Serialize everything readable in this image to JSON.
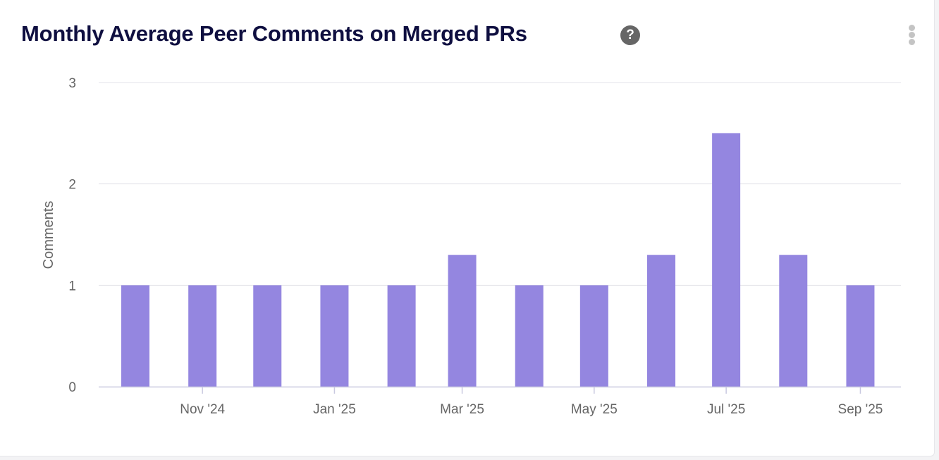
{
  "header": {
    "title": "Monthly Average Peer Comments on Merged PRs",
    "help_icon": "question-circle-icon",
    "menu_icon": "more-vertical-icon"
  },
  "chart_data": {
    "type": "bar",
    "title": "Monthly Average Peer Comments on Merged PRs",
    "xlabel": "",
    "ylabel": "Comments",
    "ylim": [
      0,
      3
    ],
    "yticks": [
      0,
      1,
      2,
      3
    ],
    "xtick_labels": [
      {
        "date": "2024-11-01",
        "label": "Nov '24"
      },
      {
        "date": "2025-01-01",
        "label": "Jan '25"
      },
      {
        "date": "2025-03-01",
        "label": "Mar '25"
      },
      {
        "date": "2025-05-01",
        "label": "May '25"
      },
      {
        "date": "2025-07-01",
        "label": "Jul '25"
      },
      {
        "date": "2025-09-01",
        "label": "Sep '25"
      }
    ],
    "categories": [
      "2024-10-01",
      "2024-11-01",
      "2024-12-01",
      "2025-01-01",
      "2025-02-01",
      "2025-03-01",
      "2025-04-01",
      "2025-05-01",
      "2025-06-01",
      "2025-07-01",
      "2025-08-01",
      "2025-09-01"
    ],
    "values": [
      1,
      1,
      1,
      1,
      1,
      1.3,
      1,
      1,
      1.3,
      2.5,
      1.3,
      1
    ],
    "bar_color": "#9486e0",
    "grid": true
  }
}
